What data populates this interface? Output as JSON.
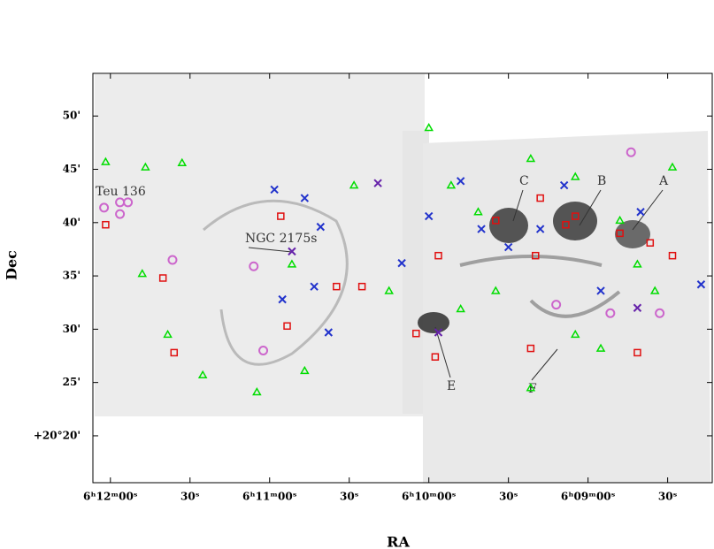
{
  "chart_data": {
    "type": "scatter",
    "x_label": "RA",
    "y_label": "Dec",
    "xlim": [
      12.11,
      8.22
    ],
    "ylim": [
      15.6,
      54
    ],
    "xticks": [
      {
        "value": 12.0,
        "label": "6ʰ12ᵐ00ˢ"
      },
      {
        "value": 11.5,
        "label": "30ˢ"
      },
      {
        "value": 11.0,
        "label": "6ʰ11ᵐ00ˢ"
      },
      {
        "value": 10.5,
        "label": "30ˢ"
      },
      {
        "value": 10.0,
        "label": "6ʰ10ᵐ00ˢ"
      },
      {
        "value": 9.5,
        "label": "30ˢ"
      },
      {
        "value": 9.0,
        "label": "6ʰ09ᵐ00ˢ"
      },
      {
        "value": 8.5,
        "label": "30ˢ"
      }
    ],
    "yticks": [
      {
        "value": 50,
        "label": "50'"
      },
      {
        "value": 45,
        "label": "45'"
      },
      {
        "value": 40,
        "label": "40'"
      },
      {
        "value": 35,
        "label": "35'"
      },
      {
        "value": 30,
        "label": "30'"
      },
      {
        "value": 25,
        "label": "25'"
      },
      {
        "value": 20,
        "label": "+20°20'"
      }
    ],
    "annotations": [
      "Teu 136",
      "NGC 2175s",
      "C",
      "B",
      "A",
      "E",
      "F"
    ],
    "series": [
      {
        "marker": "triangle",
        "color": "#00dd00",
        "x": [
          12.03,
          11.78,
          11.55,
          11.8,
          11.64,
          11.42,
          11.08,
          10.78,
          10.86,
          10.47,
          10.25,
          10.0,
          9.86,
          9.69,
          9.58,
          9.36,
          9.08,
          8.8,
          8.69,
          8.47,
          9.08,
          9.36,
          9.8,
          8.92,
          8.58
        ],
        "values": [
          45.7,
          45.2,
          45.6,
          35.2,
          29.5,
          25.7,
          24.1,
          26.1,
          36.1,
          43.5,
          33.6,
          48.9,
          43.5,
          41.0,
          33.6,
          46.0,
          44.3,
          40.2,
          36.1,
          45.2,
          29.5,
          24.5,
          31.9,
          28.2,
          33.6
        ]
      },
      {
        "marker": "square",
        "color": "#e01010",
        "x": [
          12.03,
          11.67,
          11.6,
          10.93,
          10.89,
          10.58,
          10.42,
          10.08,
          9.96,
          9.94,
          9.58,
          9.3,
          9.08,
          8.8,
          8.61,
          8.47,
          8.69,
          9.36,
          9.33,
          9.14
        ],
        "values": [
          39.8,
          34.8,
          27.8,
          40.6,
          30.3,
          34.0,
          34.0,
          29.6,
          27.4,
          36.9,
          40.2,
          42.3,
          40.6,
          39.0,
          38.1,
          36.9,
          27.8,
          28.2,
          36.9,
          39.8
        ]
      },
      {
        "marker": "cross",
        "color": "#2233cc",
        "x": [
          10.97,
          10.78,
          10.68,
          10.72,
          10.92,
          10.63,
          10.17,
          10.0,
          9.8,
          9.67,
          9.5,
          9.3,
          9.15,
          8.92,
          8.67,
          8.29
        ],
        "values": [
          43.1,
          42.3,
          39.6,
          34.0,
          32.8,
          29.7,
          36.2,
          40.6,
          43.9,
          39.4,
          37.7,
          39.4,
          43.5,
          33.6,
          41.0,
          34.2
        ]
      },
      {
        "marker": "circle",
        "color": "#cc66cc",
        "x": [
          12.04,
          11.94,
          11.89,
          11.94,
          11.61,
          11.1,
          11.04,
          8.73,
          8.55,
          9.2,
          8.86
        ],
        "values": [
          41.4,
          41.9,
          41.9,
          40.8,
          36.5,
          35.9,
          28.0,
          46.6,
          31.5,
          32.3,
          31.5
        ]
      },
      {
        "marker": "cross",
        "color": "#6622aa",
        "x": [
          10.32,
          9.94,
          8.69,
          10.86
        ],
        "values": [
          43.7,
          29.7,
          32.0,
          37.3
        ]
      }
    ]
  }
}
